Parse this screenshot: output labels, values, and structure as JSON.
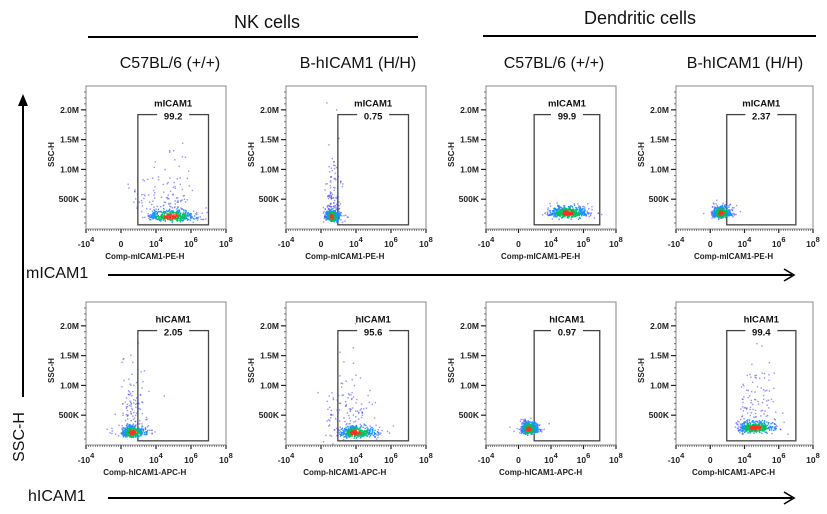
{
  "figure": {
    "groups": [
      {
        "label": "NK cells"
      },
      {
        "label": "Dendritic cells"
      }
    ],
    "columns": [
      {
        "label": "C57BL/6 (+/+)"
      },
      {
        "label": "B-hICAM1 (H/H)"
      },
      {
        "label": "C57BL/6 (+/+)"
      },
      {
        "label": "B-hICAM1 (H/H)"
      }
    ],
    "rows": [
      {
        "label": "mICAM1"
      },
      {
        "label": "hICAM1"
      }
    ],
    "y_axis_arrow_label": "SSC-H",
    "colors": {
      "axis": "#333333",
      "gate": "#444444",
      "density_low": "#3b3bff",
      "density_mid": "#00c060",
      "density_high": "#ff3020"
    }
  },
  "chart_data": [
    {
      "type": "scatter",
      "row": 0,
      "col": 0,
      "group": "NK cells",
      "genotype": "C57BL/6 (+/+)",
      "gate_name": "mICAM1",
      "gate_percent": "99.2",
      "xlabel": "Comp-mICAM1-PE-H",
      "ylabel": "SSC-H",
      "yticks": [
        "500K",
        "1.0M",
        "1.5M",
        "2.0M"
      ],
      "xticks": [
        "-10^4",
        "0",
        "10^4",
        "10^6",
        "10^8"
      ],
      "ylim": [
        0,
        2400000
      ],
      "population": {
        "x_center": "10^4.8",
        "y_center": "220K",
        "spread": "wide",
        "tail_up": true,
        "left_sparse": true
      }
    },
    {
      "type": "scatter",
      "row": 0,
      "col": 1,
      "group": "NK cells",
      "genotype": "B-hICAM1 (H/H)",
      "gate_name": "mICAM1",
      "gate_percent": "0.75",
      "xlabel": "Comp-mICAM1-PE-H",
      "ylabel": "SSC-H",
      "yticks": [
        "500K",
        "1.0M",
        "1.5M",
        "2.0M"
      ],
      "xticks": [
        "-10^4",
        "0",
        "10^4",
        "10^6",
        "10^8"
      ],
      "ylim": [
        0,
        2400000
      ],
      "population": {
        "x_center": "10^1.5",
        "y_center": "220K",
        "spread": "narrow",
        "tail_up": true,
        "left_sparse": false
      }
    },
    {
      "type": "scatter",
      "row": 0,
      "col": 2,
      "group": "Dendritic cells",
      "genotype": "C57BL/6 (+/+)",
      "gate_name": "mICAM1",
      "gate_percent": "99.9",
      "xlabel": "Comp-mICAM1-PE-H",
      "ylabel": "SSC-H",
      "yticks": [
        "500K",
        "1.0M",
        "1.5M",
        "2.0M"
      ],
      "xticks": [
        "-10^4",
        "0",
        "10^4",
        "10^6",
        "10^8"
      ],
      "ylim": [
        0,
        2400000
      ],
      "population": {
        "x_center": "10^5",
        "y_center": "280K",
        "spread": "medium",
        "tail_up": false,
        "left_sparse": false
      }
    },
    {
      "type": "scatter",
      "row": 0,
      "col": 3,
      "group": "Dendritic cells",
      "genotype": "B-hICAM1 (H/H)",
      "gate_name": "mICAM1",
      "gate_percent": "2.37",
      "xlabel": "Comp-mICAM1-PE-H",
      "ylabel": "SSC-H",
      "yticks": [
        "500K",
        "1.0M",
        "1.5M",
        "2.0M"
      ],
      "xticks": [
        "-10^4",
        "0",
        "10^4",
        "10^6",
        "10^8"
      ],
      "ylim": [
        0,
        2400000
      ],
      "population": {
        "x_center": "10^1.5",
        "y_center": "280K",
        "spread": "medium",
        "tail_up": false,
        "left_sparse": false
      }
    },
    {
      "type": "scatter",
      "row": 1,
      "col": 0,
      "group": "NK cells",
      "genotype": "C57BL/6 (+/+)",
      "gate_name": "hICAM1",
      "gate_percent": "2.05",
      "xlabel": "Comp-hICAM1-APC-H",
      "ylabel": "SSC-H",
      "yticks": [
        "500K",
        "1.0M",
        "1.5M",
        "2.0M"
      ],
      "xticks": [
        "-10^4",
        "0",
        "10^4",
        "10^6",
        "10^8"
      ],
      "ylim": [
        0,
        2400000
      ],
      "population": {
        "x_center": "10^1.5",
        "y_center": "220K",
        "spread": "wide",
        "tail_up": true,
        "left_sparse": false
      }
    },
    {
      "type": "scatter",
      "row": 1,
      "col": 1,
      "group": "NK cells",
      "genotype": "B-hICAM1 (H/H)",
      "gate_name": "hICAM1",
      "gate_percent": "95.6",
      "xlabel": "Comp-hICAM1-APC-H",
      "ylabel": "SSC-H",
      "yticks": [
        "500K",
        "1.0M",
        "1.5M",
        "2.0M"
      ],
      "xticks": [
        "-10^4",
        "0",
        "10^4",
        "10^6",
        "10^8"
      ],
      "ylim": [
        0,
        2400000
      ],
      "population": {
        "x_center": "10^3.8",
        "y_center": "220K",
        "spread": "wide",
        "tail_up": true,
        "left_sparse": true
      }
    },
    {
      "type": "scatter",
      "row": 1,
      "col": 2,
      "group": "Dendritic cells",
      "genotype": "C57BL/6 (+/+)",
      "gate_name": "hICAM1",
      "gate_percent": "0.97",
      "xlabel": "Comp-hICAM1-APC-H",
      "ylabel": "SSC-H",
      "yticks": [
        "500K",
        "1.0M",
        "1.5M",
        "2.0M"
      ],
      "xticks": [
        "-10^4",
        "0",
        "10^4",
        "10^6",
        "10^8"
      ],
      "ylim": [
        0,
        2400000
      ],
      "population": {
        "x_center": "10^1.5",
        "y_center": "280K",
        "spread": "medium",
        "tail_up": false,
        "left_sparse": false
      }
    },
    {
      "type": "scatter",
      "row": 1,
      "col": 3,
      "group": "Dendritic cells",
      "genotype": "B-hICAM1 (H/H)",
      "gate_name": "hICAM1",
      "gate_percent": "99.4",
      "xlabel": "Comp-hICAM1-APC-H",
      "ylabel": "SSC-H",
      "yticks": [
        "500K",
        "1.0M",
        "1.5M",
        "2.0M"
      ],
      "xticks": [
        "-10^4",
        "0",
        "10^4",
        "10^6",
        "10^8"
      ],
      "ylim": [
        0,
        2400000
      ],
      "population": {
        "x_center": "10^4.6",
        "y_center": "300K",
        "spread": "medium",
        "tail_up": true,
        "left_sparse": false
      }
    }
  ]
}
